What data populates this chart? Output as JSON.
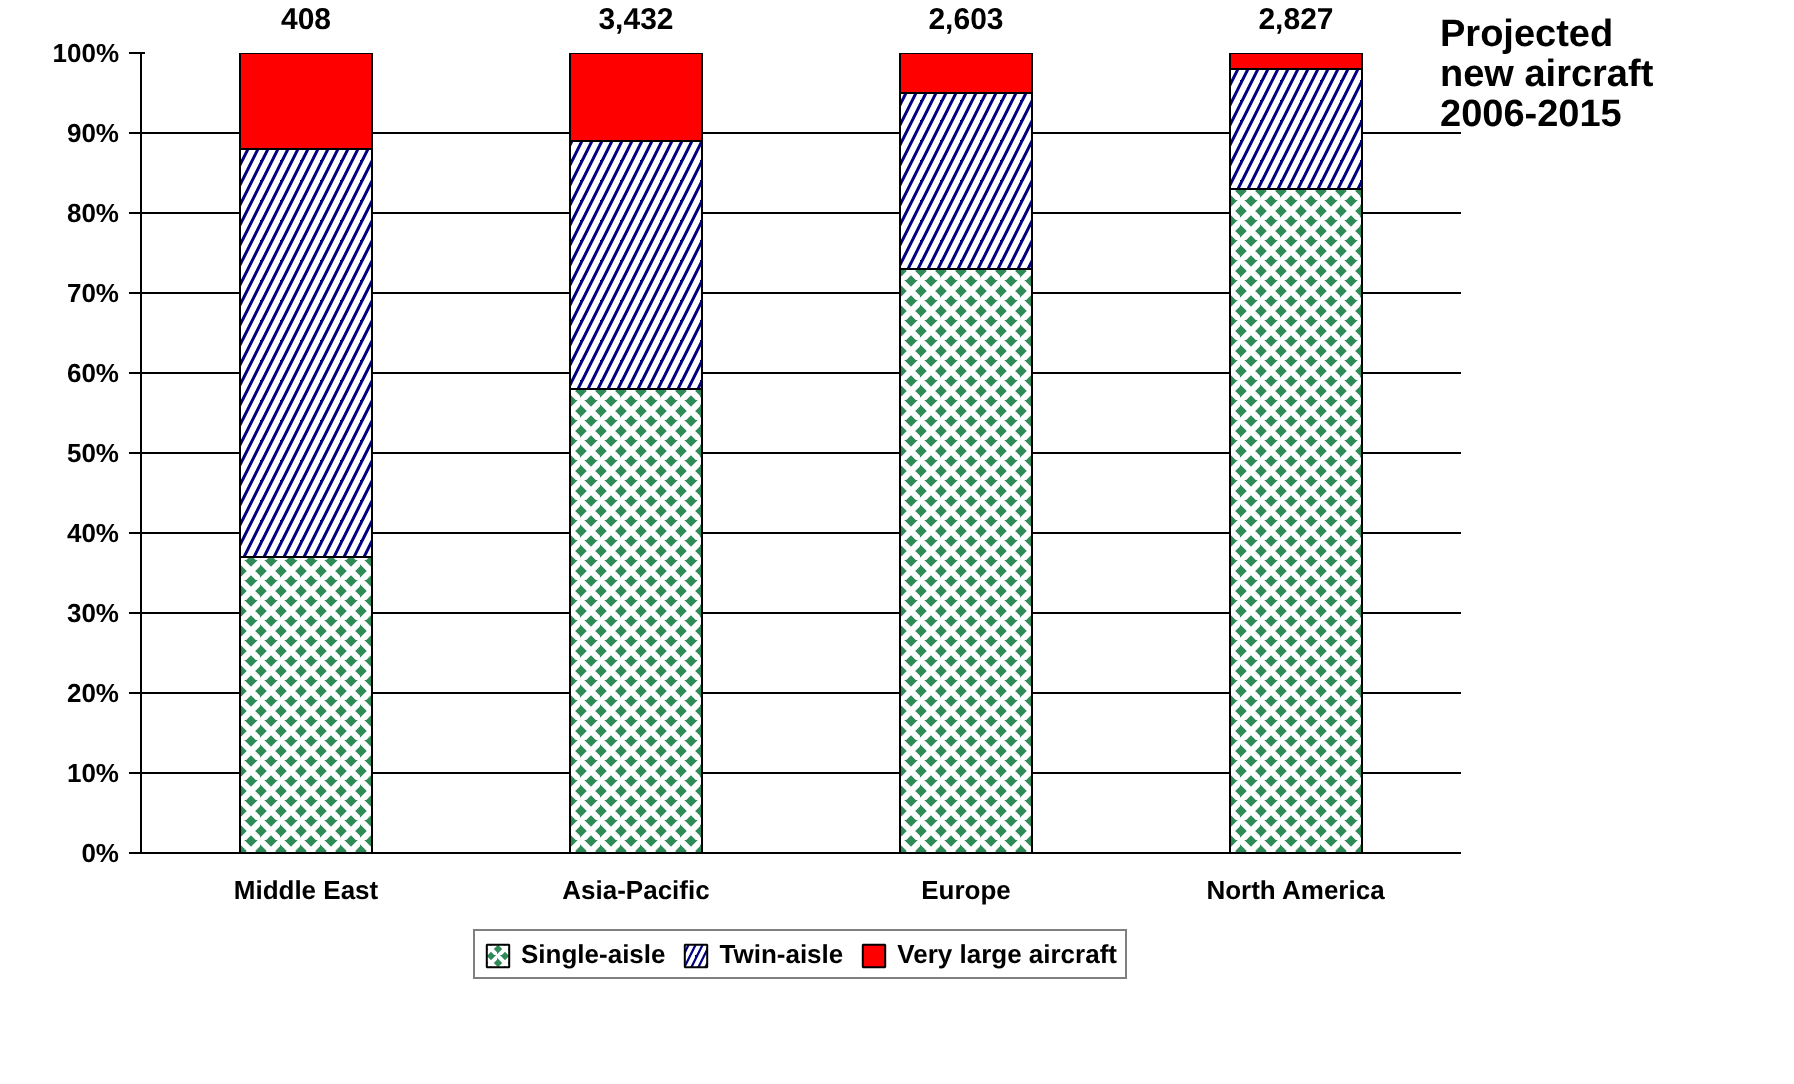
{
  "chart_data": {
    "type": "bar",
    "stacked": true,
    "categories": [
      "Middle East",
      "Asia-Pacific",
      "Europe",
      "North America"
    ],
    "series": [
      {
        "name": "Single-aisle",
        "color": "#2e8b57",
        "values": [
          37,
          58,
          73,
          83
        ]
      },
      {
        "name": "Twin-aisle",
        "color": "#000080",
        "values": [
          51,
          31,
          22,
          15
        ]
      },
      {
        "name": "Very large aircraft",
        "color": "#ff0000",
        "values": [
          12,
          11,
          5,
          2
        ]
      }
    ],
    "annotations": [
      {
        "text": "408",
        "x": "Middle East",
        "y": 100
      },
      {
        "text": "3,432",
        "x": "Asia-Pacific",
        "y": 100
      },
      {
        "text": "2,603",
        "x": "Europe",
        "y": 100
      },
      {
        "text": "2,827",
        "x": "North America",
        "y": 100
      },
      "Projected new aircraft 2006-2015"
    ],
    "ylim": [
      0,
      100
    ],
    "yticks": [
      {
        "value": 0,
        "label": "0%"
      },
      {
        "value": 10,
        "label": "10%"
      },
      {
        "value": 20,
        "label": "20%"
      },
      {
        "value": 30,
        "label": "30%"
      },
      {
        "value": 40,
        "label": "40%"
      },
      {
        "value": 50,
        "label": "50%"
      },
      {
        "value": 60,
        "label": "60%"
      },
      {
        "value": 70,
        "label": "70%"
      },
      {
        "value": 80,
        "label": "80%"
      },
      {
        "value": 90,
        "label": "90%"
      },
      {
        "value": 100,
        "label": "100%"
      }
    ],
    "grid": "y",
    "legend": "bottom"
  }
}
